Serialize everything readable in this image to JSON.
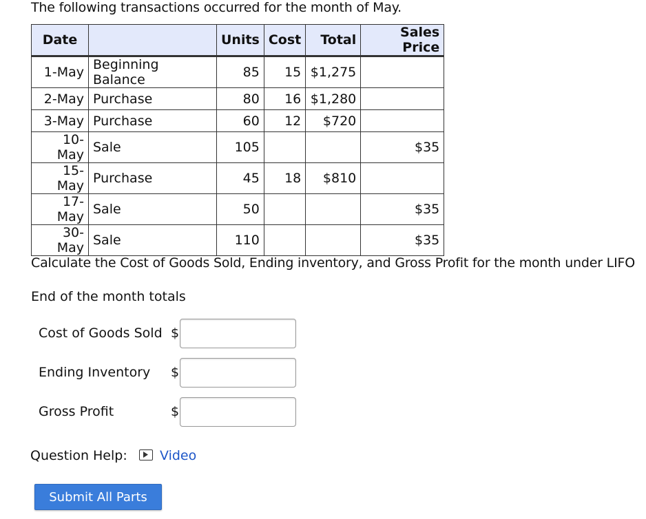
{
  "intro": "The following transactions occurred for the month of May.",
  "table": {
    "headers": [
      "Date",
      "",
      "Units",
      "Cost",
      "Total",
      "Sales Price"
    ],
    "rows": [
      [
        "1-May",
        "Beginning Balance",
        "85",
        "15",
        "$1,275",
        ""
      ],
      [
        "2-May",
        "Purchase",
        "80",
        "16",
        "$1,280",
        ""
      ],
      [
        "3-May",
        "Purchase",
        "60",
        "12",
        "$720",
        ""
      ],
      [
        "10-May",
        "Sale",
        "105",
        "",
        "",
        "$35"
      ],
      [
        "15-May",
        "Purchase",
        "45",
        "18",
        "$810",
        ""
      ],
      [
        "17-May",
        "Sale",
        "50",
        "",
        "",
        "$35"
      ],
      [
        "30-May",
        "Sale",
        "110",
        "",
        "",
        "$35"
      ]
    ]
  },
  "question": "Calculate the Cost of Goods Sold, Ending inventory, and Gross Profit for the month under LIFO",
  "end_totals_label": "End of the month totals",
  "fields": {
    "cogs": {
      "label": "Cost of Goods Sold",
      "currency": "$",
      "value": ""
    },
    "ending_inventory": {
      "label": "Ending Inventory",
      "currency": "$",
      "value": ""
    },
    "gross_profit": {
      "label": "Gross Profit",
      "currency": "$",
      "value": ""
    }
  },
  "help": {
    "label": "Question Help:",
    "video_link": "Video",
    "icon": "video-icon"
  },
  "submit_label": "Submit All Parts",
  "colors": {
    "header_bg": "#e3e9fb",
    "link": "#1d56c8",
    "button": "#3a7ddb"
  }
}
